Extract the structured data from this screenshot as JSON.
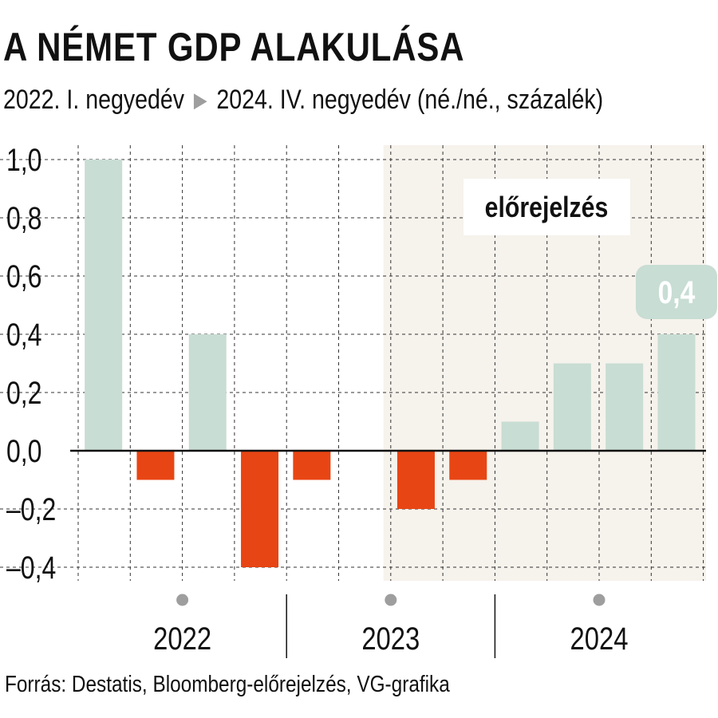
{
  "title": "A NÉMET GDP ALAKULÁSA",
  "subtitle": {
    "start": "2022. I. negyedév",
    "arrow_icon": "triangle-right-icon",
    "end": "2024. IV. negyedév (né./né., százalék)"
  },
  "source": "Forrás: Destatis, Bloomberg-előrejelzés, VG-grafika",
  "colors": {
    "positive": "#c8ddd4",
    "negative": "#e84514",
    "forecast_background": "#f6f2ec",
    "grid": "#333333",
    "axis_dot": "#9e9e9e"
  },
  "chart_data": {
    "type": "bar",
    "categories": [
      "2022 Q1",
      "2022 Q2",
      "2022 Q3",
      "2022 Q4",
      "2023 Q1",
      "2023 Q2",
      "2023 Q3",
      "2023 Q4",
      "2024 Q1",
      "2024 Q2",
      "2024 Q3",
      "2024 Q4"
    ],
    "values": [
      1.0,
      -0.1,
      0.4,
      -0.4,
      -0.1,
      0.0,
      -0.2,
      -0.1,
      0.1,
      0.3,
      0.3,
      0.4
    ],
    "years": [
      "2022",
      "2023",
      "2024"
    ],
    "ylim": [
      -0.4,
      1.0
    ],
    "yticks": [
      -0.4,
      -0.2,
      0.0,
      0.2,
      0.4,
      0.6,
      0.8,
      1.0
    ],
    "ytick_labels": [
      "–0,4",
      "–0,2",
      "0,0",
      "0,2",
      "0,4",
      "0,6",
      "0,8",
      "1,0"
    ],
    "forecast_label": "előrejelzés",
    "forecast_start_index": 6,
    "highlight_label": "0,4",
    "highlight_index": 11,
    "grid": true
  }
}
